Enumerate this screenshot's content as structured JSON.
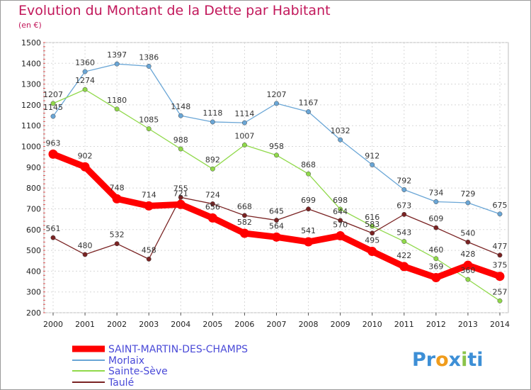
{
  "chart_data": {
    "type": "line",
    "title": "Evolution du Montant de la Dette par Habitant",
    "subtitle": "(en €)",
    "x": [
      "2000",
      "2001",
      "2002",
      "2003",
      "2004",
      "2005",
      "2006",
      "2007",
      "2008",
      "2009",
      "2010",
      "2011",
      "2012",
      "2013",
      "2014"
    ],
    "ylim": [
      200,
      1500
    ],
    "yticks": [
      200,
      300,
      400,
      500,
      600,
      700,
      800,
      900,
      1000,
      1100,
      1200,
      1300,
      1400,
      1500
    ],
    "grid": true,
    "legend_position": "bottom-left",
    "series": [
      {
        "name": "SAINT-MARTIN-DES-CHAMPS",
        "color": "#ff0000",
        "values": [
          963,
          902,
          748,
          714,
          721,
          656,
          582,
          564,
          541,
          570,
          495,
          422,
          369,
          428,
          375
        ],
        "labels": [
          "963",
          "902",
          "748",
          "714",
          "721",
          "656",
          "582",
          "564",
          "541",
          "570",
          "495",
          "422",
          "369",
          "428",
          "375"
        ]
      },
      {
        "name": "Morlaix",
        "color": "#6aa6d6",
        "values": [
          1145,
          1360,
          1397,
          1386,
          1148,
          1118,
          1114,
          1207,
          1167,
          1032,
          912,
          792,
          734,
          729,
          675
        ],
        "labels": [
          "1145",
          "1360",
          "1397",
          "1386",
          "1148",
          "1118",
          "1114",
          "1207",
          "1167",
          "1032",
          "912",
          "792",
          "734",
          "729",
          "675"
        ]
      },
      {
        "name": "Sainte-Sève",
        "color": "#90d94a",
        "values": [
          1207,
          1274,
          1180,
          1085,
          988,
          892,
          1007,
          958,
          868,
          698,
          616,
          543,
          460,
          360,
          257
        ],
        "labels": [
          "1207",
          "1274",
          "1180",
          "1085",
          "988",
          "892",
          "1007",
          "958",
          "868",
          "698",
          "616",
          "543",
          "460",
          "360",
          "257"
        ]
      },
      {
        "name": "Taulé",
        "color": "#7a2323",
        "values": [
          561,
          480,
          532,
          458,
          755,
          724,
          668,
          645,
          699,
          644,
          583,
          673,
          609,
          540,
          477
        ],
        "labels": [
          "561",
          "480",
          "532",
          "458",
          "755",
          "724",
          "668",
          "645",
          "699",
          "644",
          "583",
          "673",
          "609",
          "540",
          "477"
        ]
      }
    ]
  },
  "brand": {
    "parts": [
      "Pr",
      "o",
      "x",
      "i",
      "ti"
    ],
    "colors": [
      "#3d8fd6",
      "#f09c1c",
      "#3d8fd6",
      "#8bc34a",
      "#3d8fd6"
    ]
  }
}
